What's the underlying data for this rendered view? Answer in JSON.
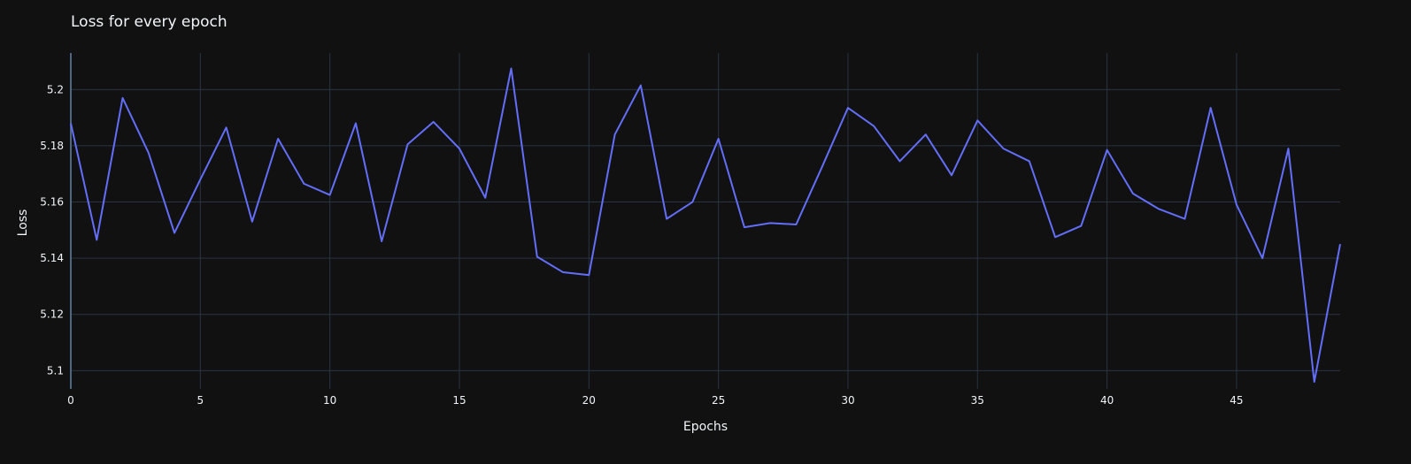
{
  "chart_data": {
    "type": "line",
    "title": "Loss for every epoch",
    "xlabel": "Epochs",
    "ylabel": "Loss",
    "xlim": [
      0,
      49
    ],
    "ylim": [
      5.0935,
      5.213
    ],
    "xticks": [
      0,
      5,
      10,
      15,
      20,
      25,
      30,
      35,
      40,
      45
    ],
    "xtick_labels": [
      "0",
      "5",
      "10",
      "15",
      "20",
      "25",
      "30",
      "35",
      "40",
      "45"
    ],
    "yticks": [
      5.1,
      5.12,
      5.14,
      5.16,
      5.18,
      5.2
    ],
    "ytick_labels": [
      "5.1",
      "5.12",
      "5.14",
      "5.16",
      "5.18",
      "5.2"
    ],
    "grid": true,
    "background": "#111111",
    "grid_color": "#283442",
    "axis_line_color": "#506784",
    "text_color": "#f2f5fa",
    "series": [
      {
        "color": "#636efa",
        "x": [
          0,
          1,
          2,
          3,
          4,
          5,
          6,
          7,
          8,
          9,
          10,
          11,
          12,
          13,
          14,
          15,
          16,
          17,
          18,
          19,
          20,
          21,
          22,
          23,
          24,
          25,
          26,
          27,
          28,
          29,
          30,
          31,
          32,
          33,
          34,
          35,
          36,
          37,
          38,
          39,
          40,
          41,
          42,
          43,
          44,
          45,
          46,
          47,
          48,
          49
        ],
        "values": [
          5.188,
          5.1465,
          5.197,
          5.1775,
          5.149,
          5.168,
          5.1865,
          5.153,
          5.1825,
          5.1665,
          5.1625,
          5.188,
          5.146,
          5.1805,
          5.1885,
          5.179,
          5.1615,
          5.2075,
          5.1405,
          5.135,
          5.134,
          5.184,
          5.2015,
          5.154,
          5.16,
          5.1825,
          5.151,
          5.1525,
          5.152,
          5.1725,
          5.1935,
          5.187,
          5.1745,
          5.184,
          5.1695,
          5.189,
          5.179,
          5.1745,
          5.1475,
          5.1515,
          5.1785,
          5.163,
          5.1575,
          5.154,
          5.1935,
          5.159,
          5.14,
          5.179,
          5.096,
          5.145
        ]
      }
    ]
  }
}
